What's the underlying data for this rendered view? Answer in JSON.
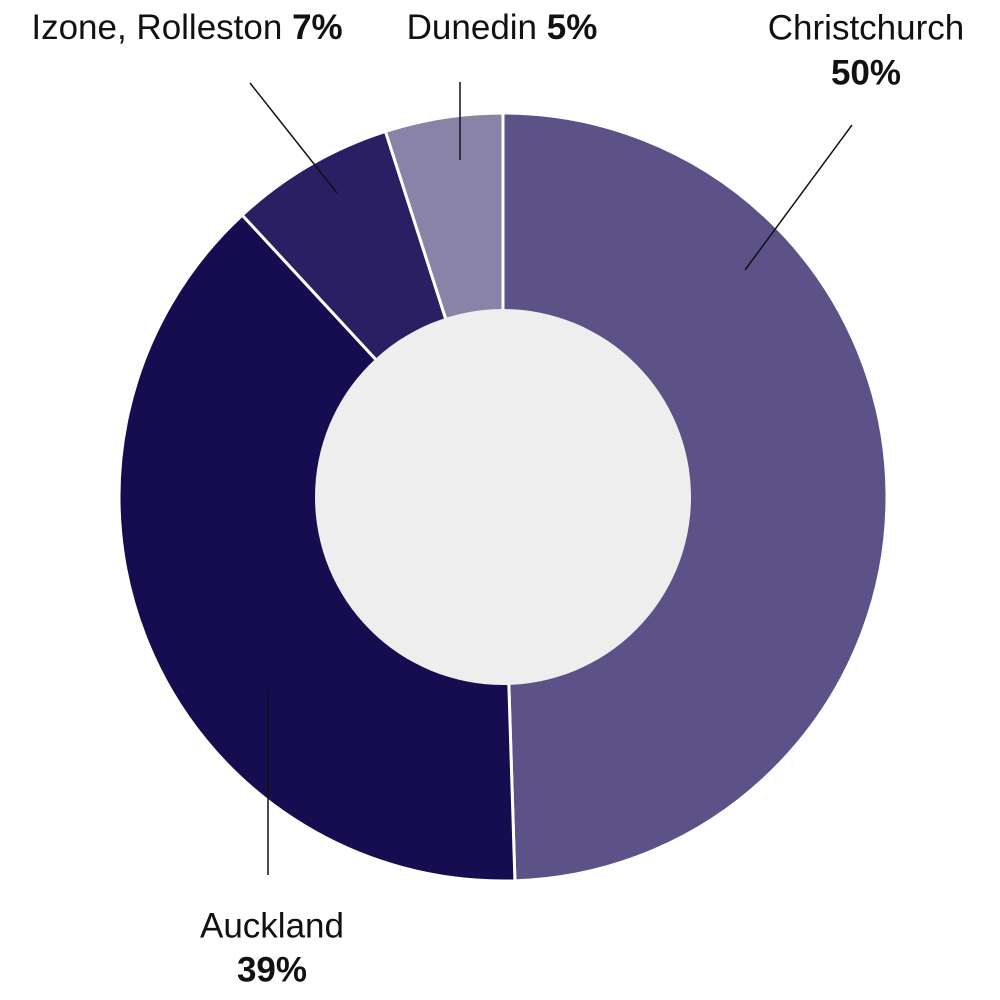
{
  "chart_data": {
    "type": "donut",
    "categories": [
      "Christchurch",
      "Auckland",
      "Izone, Rolleston",
      "Dunedin"
    ],
    "values": [
      50,
      39,
      7,
      5
    ],
    "value_labels": [
      "50%",
      "39%",
      "7%",
      "5%"
    ],
    "colors": [
      "#5c5287",
      "#160c50",
      "#2a1f63",
      "#8a83a8"
    ]
  }
}
